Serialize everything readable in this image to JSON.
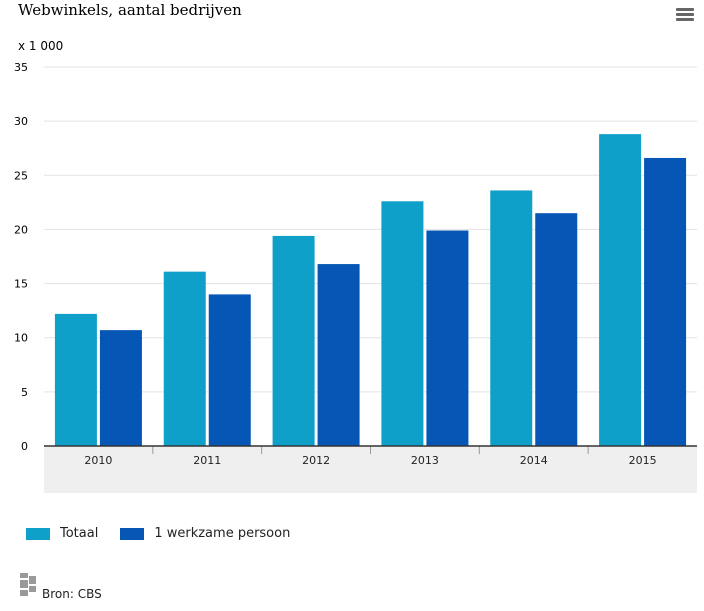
{
  "header": {
    "title": "Webwinkels, aantal bedrijven",
    "unit": "x 1 000"
  },
  "source": {
    "label": "Bron: CBS"
  },
  "colors": {
    "totaal": "#0fa0ca",
    "werkzame": "#0556b5",
    "grid": "#e3e3e3",
    "axis_band": "#efefef"
  },
  "icons": {
    "menu": "hamburger-menu-icon",
    "logo": "cbs-logo-icon"
  },
  "chart_data": {
    "type": "bar",
    "title": "Webwinkels, aantal bedrijven",
    "ylabel": "x 1 000",
    "xlabel": "",
    "categories": [
      "2010",
      "2011",
      "2012",
      "2013",
      "2014",
      "2015"
    ],
    "series": [
      {
        "name": "Totaal",
        "values": [
          12.2,
          16.1,
          19.4,
          22.6,
          23.6,
          28.8
        ]
      },
      {
        "name": "1 werkzame persoon",
        "values": [
          10.7,
          14.0,
          16.8,
          19.9,
          21.5,
          26.6
        ]
      }
    ],
    "ylim": [
      0,
      35
    ],
    "yticks": [
      0,
      5,
      10,
      15,
      20,
      25,
      30,
      35
    ],
    "grid": true,
    "legend": "bottom-left"
  }
}
